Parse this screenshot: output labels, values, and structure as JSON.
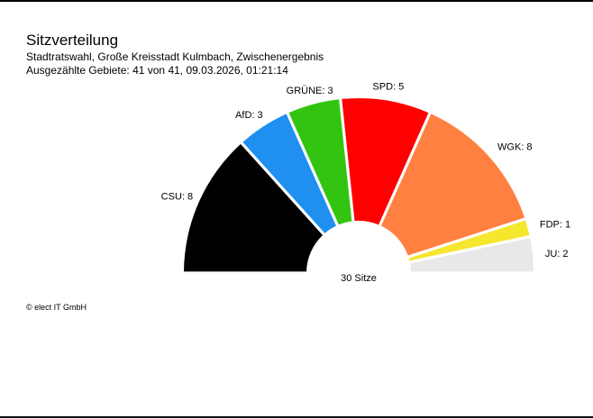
{
  "header": {
    "title": "Sitzverteilung",
    "subtitle": "Stadtratswahl, Große Kreisstadt Kulmbach, Zwischenergebnis",
    "counted": "Ausgezählte Gebiete: 41 von 41, 09.03.2026, 01:21:14"
  },
  "footer": {
    "copyright": "© elect IT GmbH"
  },
  "chart_data": {
    "type": "pie",
    "subtype": "semicircle-parliament",
    "title": "Sitzverteilung",
    "subtitle": "Stadtratswahl, Große Kreisstadt Kulmbach, Zwischenergebnis",
    "center_label": "30 Sitze",
    "total": 30,
    "categories": [
      "CSU",
      "AfD",
      "GRÜNE",
      "SPD",
      "WGK",
      "FDP",
      "JU"
    ],
    "values": [
      8,
      3,
      3,
      5,
      8,
      1,
      2
    ],
    "colors": [
      "#000000",
      "#1f8ff0",
      "#33c411",
      "#ff0000",
      "#ff8040",
      "#f5e62e",
      "#e8e8e8"
    ],
    "labels": [
      "CSU: 8",
      "AfD: 3",
      "GRÜNE: 3",
      "SPD: 5",
      "WGK: 8",
      "FDP: 1",
      "JU: 2"
    ]
  }
}
